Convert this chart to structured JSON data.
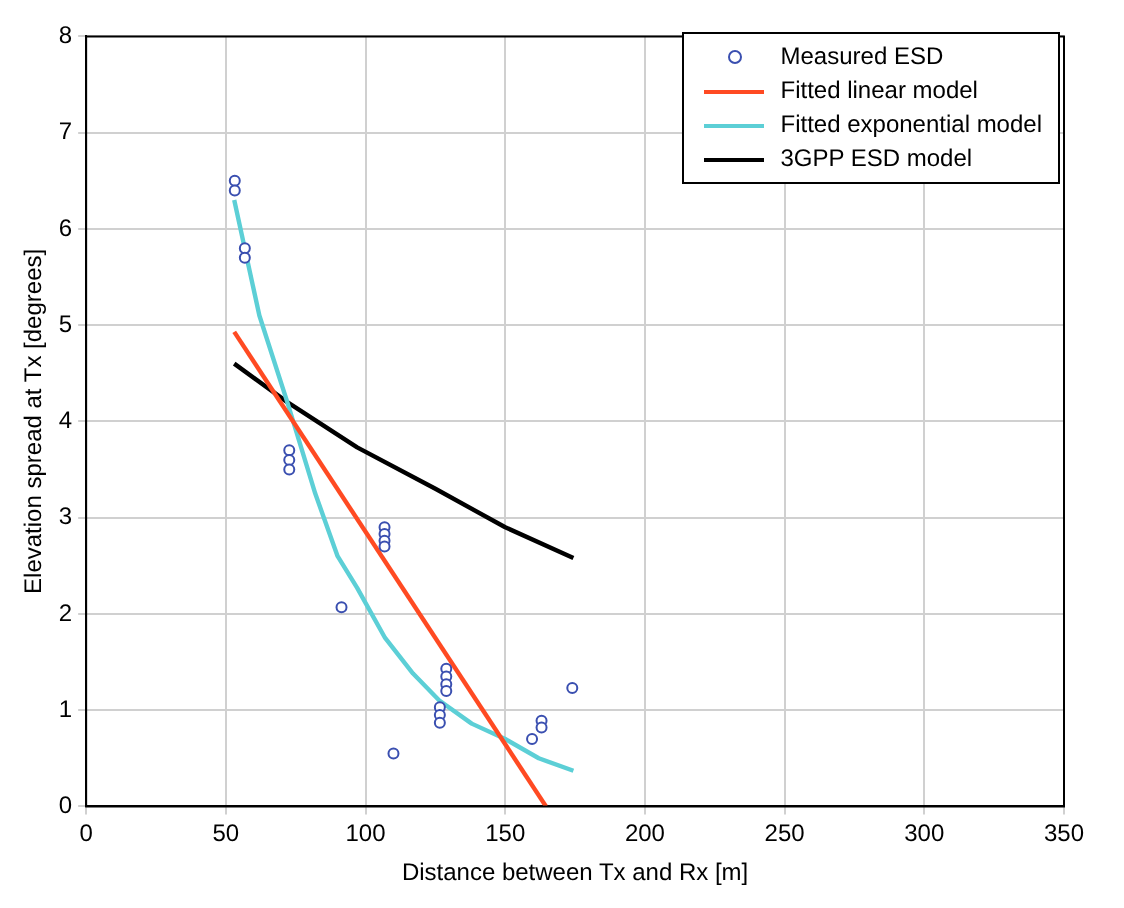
{
  "chart_data": {
    "type": "scatter",
    "xlabel": "Distance between Tx and Rx [m]",
    "ylabel": "Elevation spread at Tx [degrees]",
    "xlim": [
      0,
      350
    ],
    "ylim": [
      0,
      8
    ],
    "xticks": [
      0,
      50,
      100,
      150,
      200,
      250,
      300,
      350
    ],
    "yticks": [
      0,
      1,
      2,
      3,
      4,
      5,
      6,
      7,
      8
    ],
    "grid": true,
    "legend": "top right",
    "series": [
      {
        "name": "Measured ESD",
        "type": "scatter",
        "marker": "circle",
        "color": "#3a4fb0",
        "x": [
          53.2,
          53.2,
          56.8,
          56.8,
          72.7,
          72.7,
          72.7,
          91.4,
          106.8,
          106.8,
          106.8,
          106.8,
          110,
          126.6,
          126.6,
          126.6,
          128.9,
          128.9,
          128.9,
          128.9,
          159.6,
          163,
          163,
          174
        ],
        "values": [
          6.5,
          6.4,
          5.8,
          5.7,
          3.7,
          3.6,
          3.5,
          2.07,
          2.9,
          2.83,
          2.76,
          2.7,
          0.55,
          1.03,
          0.95,
          0.87,
          1.43,
          1.35,
          1.27,
          1.2,
          0.7,
          0.89,
          0.82,
          1.23
        ]
      },
      {
        "name": "Fitted linear model",
        "type": "line",
        "line_style": "solid",
        "color": "#ff4a22",
        "x": [
          53,
          164.6
        ],
        "values": [
          4.93,
          0
        ]
      },
      {
        "name": "Fitted exponential model",
        "type": "line",
        "line_style": "solid",
        "color": "#5ccfd6",
        "x": [
          53,
          62,
          72,
          82,
          90,
          97,
          107,
          117,
          126.4,
          138,
          150,
          162,
          174.4
        ],
        "values": [
          6.3,
          5.1,
          4.2,
          3.25,
          2.6,
          2.27,
          1.75,
          1.38,
          1.1,
          0.86,
          0.7,
          0.5,
          0.37
        ]
      },
      {
        "name": "3GPP ESD model",
        "type": "line",
        "line_style": "solid",
        "color": "#000000",
        "x": [
          53,
          72,
          97,
          125,
          150,
          174.4
        ],
        "values": [
          4.6,
          4.2,
          3.73,
          3.3,
          2.9,
          2.58
        ]
      }
    ]
  }
}
